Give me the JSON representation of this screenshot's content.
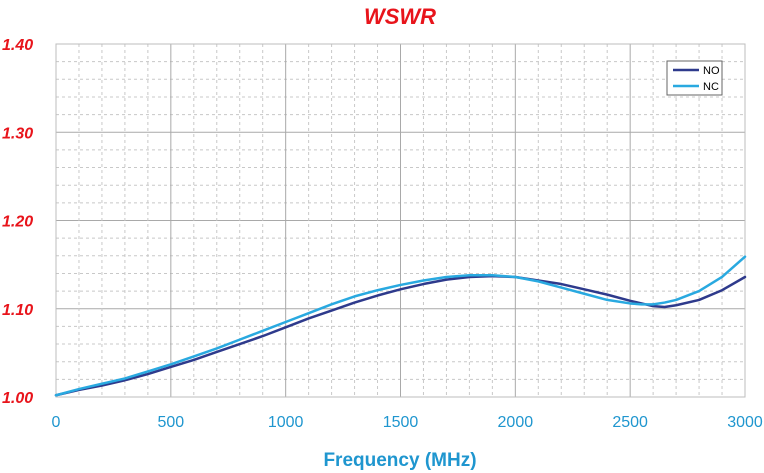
{
  "chart_data": {
    "type": "line",
    "title": "WSWR",
    "xlabel": "Frequency (MHz)",
    "ylabel": "",
    "xlim": [
      0,
      3000
    ],
    "ylim": [
      1.0,
      1.4
    ],
    "xticks": [
      "0",
      "500",
      "1000",
      "1500",
      "2000",
      "2500",
      "3000"
    ],
    "yticks": [
      "1.00",
      "1.10",
      "1.20",
      "1.30",
      "1.40"
    ],
    "grid": true,
    "legend_position": "top-right",
    "series": [
      {
        "name": "NO",
        "color": "#2e3a8c",
        "x": [
          0,
          100,
          200,
          300,
          400,
          500,
          600,
          700,
          800,
          900,
          1000,
          1100,
          1200,
          1300,
          1400,
          1500,
          1600,
          1700,
          1800,
          1900,
          2000,
          2100,
          2200,
          2300,
          2400,
          2500,
          2550,
          2600,
          2650,
          2700,
          2800,
          2900,
          3000
        ],
        "y": [
          1.002,
          1.008,
          1.013,
          1.019,
          1.026,
          1.034,
          1.042,
          1.051,
          1.06,
          1.069,
          1.079,
          1.089,
          1.098,
          1.107,
          1.115,
          1.122,
          1.128,
          1.133,
          1.136,
          1.137,
          1.136,
          1.132,
          1.128,
          1.122,
          1.116,
          1.109,
          1.106,
          1.103,
          1.102,
          1.104,
          1.11,
          1.121,
          1.136
        ]
      },
      {
        "name": "NC",
        "color": "#29a9e0",
        "x": [
          0,
          100,
          200,
          300,
          400,
          500,
          600,
          700,
          800,
          900,
          1000,
          1100,
          1200,
          1300,
          1400,
          1500,
          1600,
          1700,
          1800,
          1900,
          2000,
          2100,
          2200,
          2300,
          2400,
          2500,
          2550,
          2600,
          2650,
          2700,
          2800,
          2900,
          3000
        ],
        "y": [
          1.002,
          1.009,
          1.015,
          1.021,
          1.029,
          1.037,
          1.046,
          1.055,
          1.065,
          1.075,
          1.085,
          1.095,
          1.105,
          1.114,
          1.121,
          1.127,
          1.132,
          1.136,
          1.138,
          1.138,
          1.136,
          1.131,
          1.124,
          1.117,
          1.11,
          1.106,
          1.105,
          1.105,
          1.107,
          1.11,
          1.12,
          1.136,
          1.159
        ]
      }
    ]
  }
}
